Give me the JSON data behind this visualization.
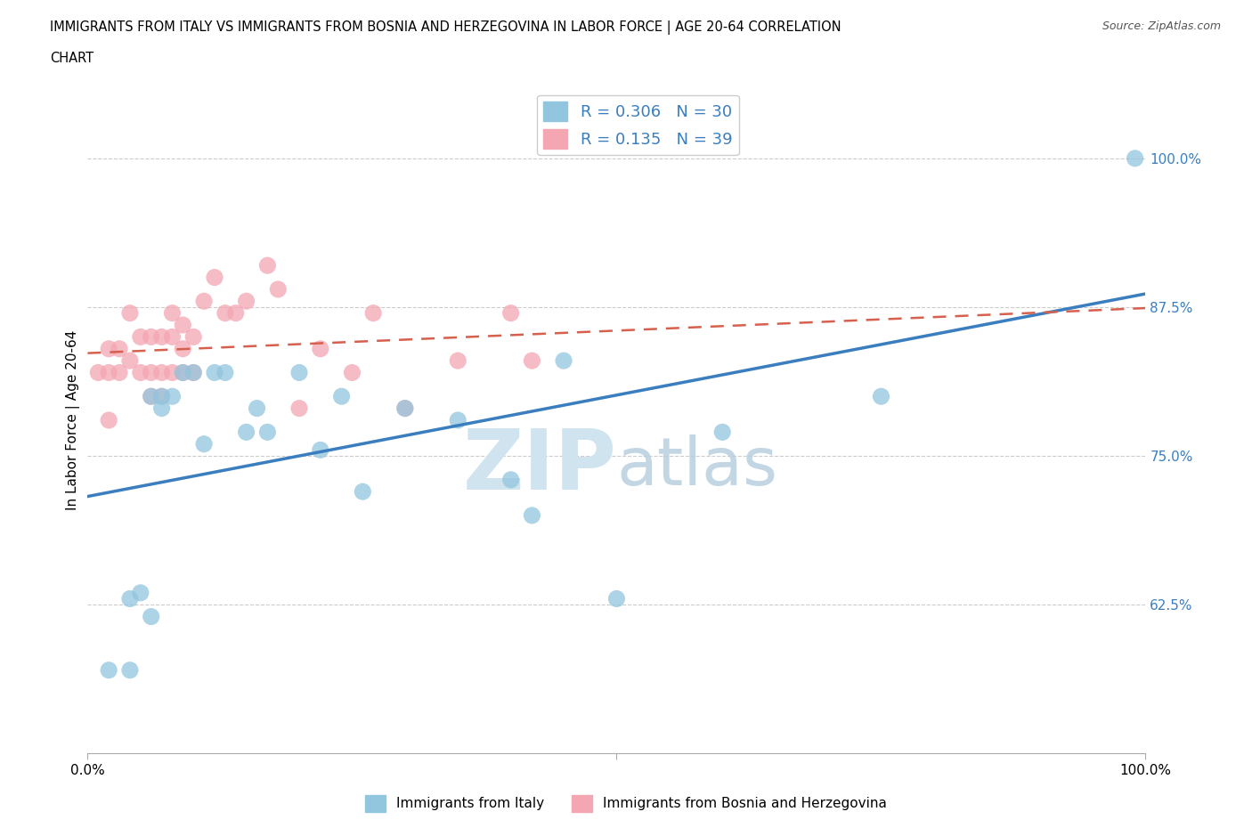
{
  "title_line1": "IMMIGRANTS FROM ITALY VS IMMIGRANTS FROM BOSNIA AND HERZEGOVINA IN LABOR FORCE | AGE 20-64 CORRELATION",
  "title_line2": "CHART",
  "source_text": "Source: ZipAtlas.com",
  "ylabel": "In Labor Force | Age 20-64",
  "xlim": [
    0.0,
    1.0
  ],
  "ylim": [
    0.5,
    1.06
  ],
  "xtick_positions": [
    0.0,
    0.5,
    1.0
  ],
  "xtick_labels": [
    "0.0%",
    "",
    "100.0%"
  ],
  "ytick_labels": [
    "62.5%",
    "75.0%",
    "87.5%",
    "100.0%"
  ],
  "ytick_values": [
    0.625,
    0.75,
    0.875,
    1.0
  ],
  "italy_R": 0.306,
  "italy_N": 30,
  "bosnia_R": 0.135,
  "bosnia_N": 39,
  "italy_color": "#92c5de",
  "bosnia_color": "#f4a6b2",
  "italy_line_color": "#3a7ebf",
  "bosnia_line_color": "#d6604d",
  "tick_label_color": "#3a7ebf",
  "watermark_zip": "ZIP",
  "watermark_atlas": "atlas",
  "watermark_color": "#d0e4f0",
  "legend_italy_label": "R = 0.306   N = 30",
  "legend_bosnia_label": "R = 0.135   N = 39",
  "bottom_legend_italy": "Immigrants from Italy",
  "bottom_legend_bosnia": "Immigrants from Bosnia and Herzegovina",
  "italy_x": [
    0.02,
    0.04,
    0.04,
    0.05,
    0.06,
    0.06,
    0.07,
    0.07,
    0.08,
    0.09,
    0.1,
    0.11,
    0.12,
    0.13,
    0.15,
    0.16,
    0.17,
    0.2,
    0.22,
    0.24,
    0.26,
    0.3,
    0.35,
    0.4,
    0.42,
    0.45,
    0.5,
    0.6,
    0.75,
    0.99
  ],
  "italy_y": [
    0.57,
    0.57,
    0.63,
    0.635,
    0.615,
    0.8,
    0.79,
    0.8,
    0.8,
    0.82,
    0.82,
    0.76,
    0.82,
    0.82,
    0.77,
    0.79,
    0.77,
    0.82,
    0.755,
    0.8,
    0.72,
    0.79,
    0.78,
    0.73,
    0.7,
    0.83,
    0.63,
    0.77,
    0.8,
    1.0
  ],
  "bosnia_x": [
    0.01,
    0.02,
    0.02,
    0.02,
    0.03,
    0.03,
    0.04,
    0.04,
    0.05,
    0.05,
    0.06,
    0.06,
    0.06,
    0.07,
    0.07,
    0.07,
    0.08,
    0.08,
    0.08,
    0.09,
    0.09,
    0.09,
    0.1,
    0.1,
    0.11,
    0.12,
    0.13,
    0.14,
    0.15,
    0.17,
    0.18,
    0.2,
    0.22,
    0.25,
    0.27,
    0.3,
    0.35,
    0.4,
    0.42
  ],
  "bosnia_y": [
    0.82,
    0.78,
    0.82,
    0.84,
    0.82,
    0.84,
    0.83,
    0.87,
    0.82,
    0.85,
    0.8,
    0.82,
    0.85,
    0.8,
    0.82,
    0.85,
    0.82,
    0.85,
    0.87,
    0.82,
    0.84,
    0.86,
    0.82,
    0.85,
    0.88,
    0.9,
    0.87,
    0.87,
    0.88,
    0.91,
    0.89,
    0.79,
    0.84,
    0.82,
    0.87,
    0.79,
    0.83,
    0.87,
    0.83
  ]
}
